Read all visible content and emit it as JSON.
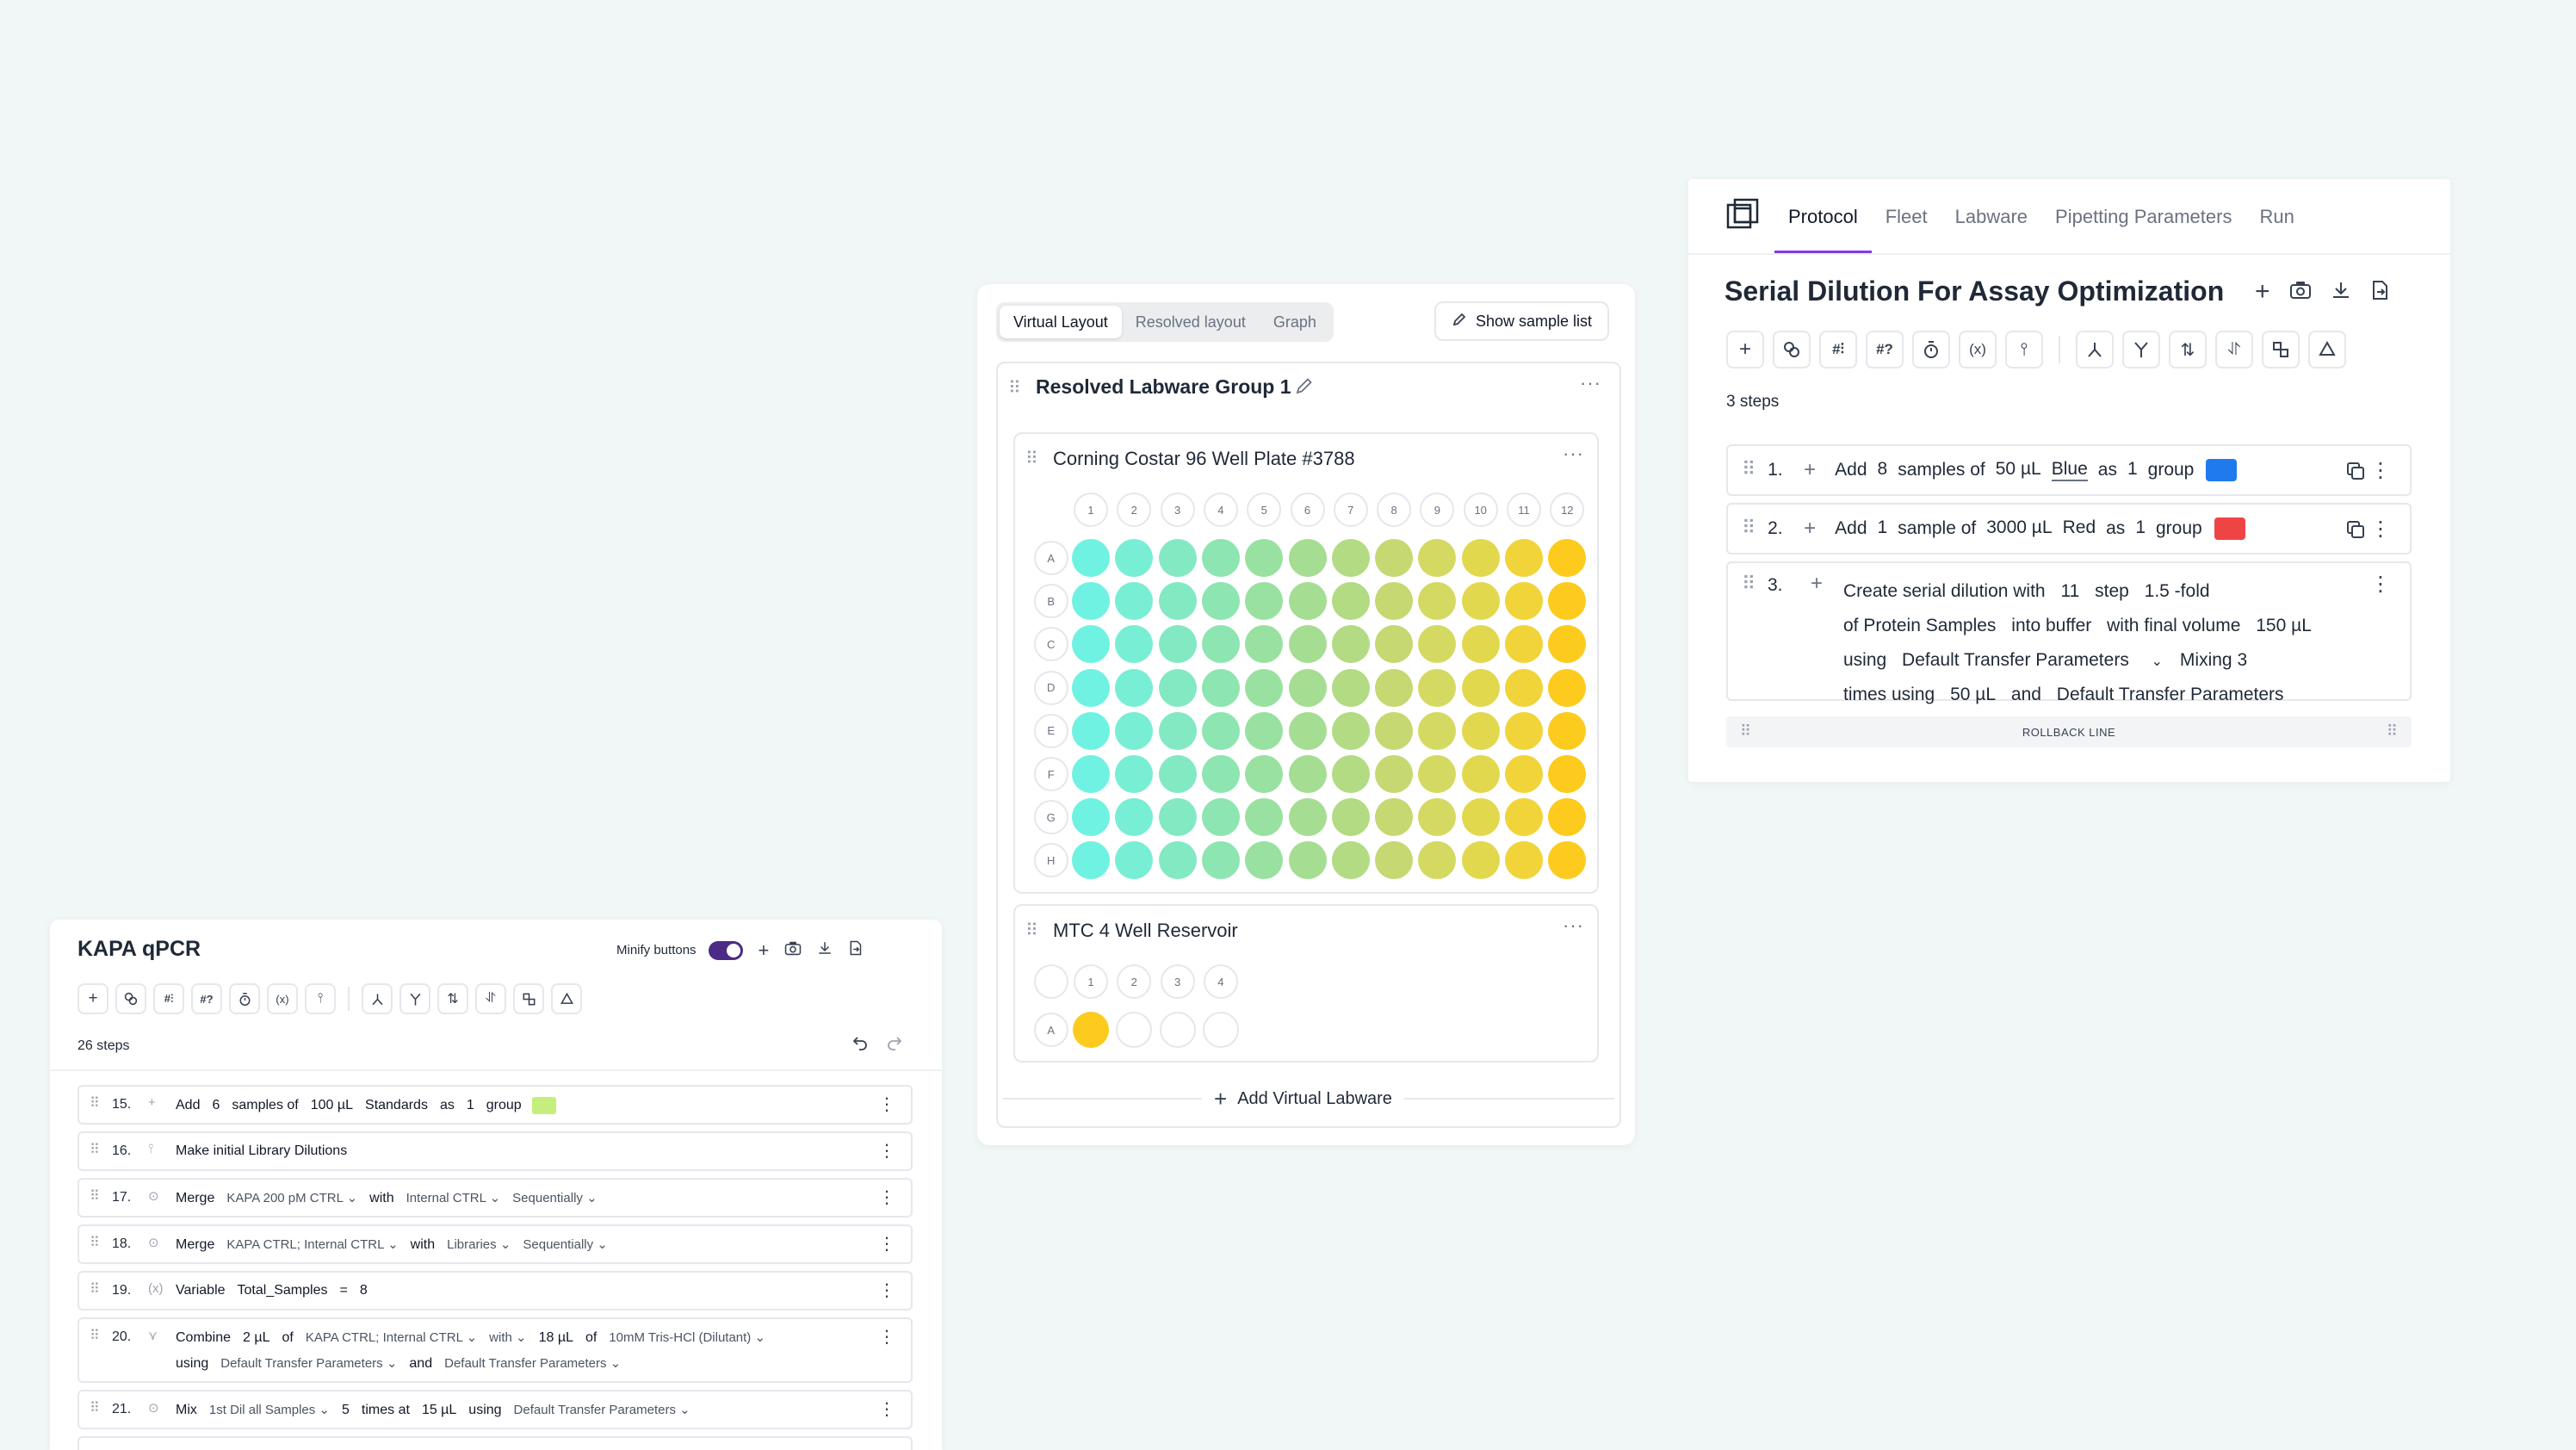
{
  "protocol_panel": {
    "tabs": [
      {
        "label": "Protocol"
      },
      {
        "label": "Fleet"
      },
      {
        "label": "Labware"
      },
      {
        "label": "Pipetting Parameters"
      },
      {
        "label": "Run"
      }
    ],
    "title": "Serial Dilution For Assay Optimization",
    "steps_count": "3 steps",
    "steps": [
      {
        "num": "1.",
        "words": [
          "Add",
          "8",
          "samples of",
          "50 µL",
          "Blue",
          "as",
          "1",
          "group"
        ],
        "color": "#1f7aed"
      },
      {
        "num": "2.",
        "words": [
          "Add",
          "1",
          "sample of",
          "3000 µL",
          "Red",
          "as",
          "1",
          "group"
        ],
        "color": "#ef4444"
      },
      {
        "num": "3.",
        "line1": [
          "Create serial dilution with",
          "11",
          "step",
          "1.5 -fold"
        ],
        "line2": [
          "of Protein Samples",
          "into buffer",
          "with final volume",
          "150 µL"
        ],
        "line3": [
          "using",
          "Default Transfer Parameters",
          "Mixing 3"
        ],
        "line4": [
          "times using",
          "50 µL",
          "and",
          "Default Transfer Parameters"
        ]
      }
    ],
    "rollback": "ROLLBACK LINE"
  },
  "layout_panel": {
    "tabs": [
      {
        "label": "Virtual Layout"
      },
      {
        "label": "Resolved layout"
      },
      {
        "label": "Graph"
      }
    ],
    "show_sample_list": "Show sample list",
    "group_title": "Resolved Labware Group 1",
    "plate": {
      "title": "Corning Costar 96 Well Plate #3788",
      "cols": [
        "1",
        "2",
        "3",
        "4",
        "5",
        "6",
        "7",
        "8",
        "9",
        "10",
        "11",
        "12"
      ],
      "rows": [
        "A",
        "B",
        "C",
        "D",
        "E",
        "F",
        "G",
        "H"
      ],
      "col_colors": [
        "#6ff2e2",
        "#78eed4",
        "#82e9c3",
        "#8de5b1",
        "#99e1a1",
        "#a5dd92",
        "#b2db83",
        "#c5d872",
        "#d4d962",
        "#e2d84e",
        "#f0d439",
        "#fccb1d"
      ]
    },
    "reservoir": {
      "title": "MTC 4 Well Reservoir",
      "cols": [
        "1",
        "2",
        "3",
        "4"
      ],
      "rows": [
        "A"
      ],
      "fill_color": "#fccb1d"
    },
    "add_virtual": "Add Virtual Labware"
  },
  "kapa_panel": {
    "title": "KAPA qPCR",
    "minify_label": "Minify buttons",
    "minify_on": true,
    "steps_count": "26 steps",
    "steps": [
      {
        "num": "15.",
        "lines": [
          [
            [
              "Add",
              0
            ],
            [
              "6",
              0
            ],
            [
              "samples of",
              0
            ],
            [
              "100 µL",
              0
            ],
            [
              "Standards",
              0
            ],
            [
              "as",
              0
            ],
            [
              "1",
              0
            ],
            [
              "group",
              0
            ]
          ]
        ],
        "swatch": "#c4ef7e"
      },
      {
        "num": "16.",
        "lines": [
          [
            [
              "Make initial Library Dilutions",
              0
            ]
          ]
        ]
      },
      {
        "num": "17.",
        "lines": [
          [
            [
              "Merge",
              0
            ],
            [
              "KAPA 200 pM CTRL ⌄",
              1
            ],
            [
              "with",
              0
            ],
            [
              "Internal CTRL ⌄",
              1
            ],
            [
              "Sequentially ⌄",
              1
            ]
          ]
        ]
      },
      {
        "num": "18.",
        "lines": [
          [
            [
              "Merge",
              0
            ],
            [
              "KAPA CTRL; Internal CTRL ⌄",
              1
            ],
            [
              "with",
              0
            ],
            [
              "Libraries ⌄",
              1
            ],
            [
              "Sequentially ⌄",
              1
            ]
          ]
        ]
      },
      {
        "num": "19.",
        "lines": [
          [
            [
              "Variable",
              0
            ],
            [
              "Total_Samples",
              0
            ],
            [
              "=",
              0
            ],
            [
              "8",
              0
            ]
          ]
        ]
      },
      {
        "num": "20.",
        "lines": [
          [
            [
              "Combine",
              0
            ],
            [
              "2 µL",
              0
            ],
            [
              "of",
              0
            ],
            [
              "KAPA CTRL; Internal CTRL ⌄",
              1
            ],
            [
              "with ⌄",
              1
            ],
            [
              "18 µL",
              0
            ],
            [
              "of",
              0
            ],
            [
              "10mM Tris-HCl (Dilutant) ⌄",
              1
            ]
          ],
          [
            [
              "using",
              0
            ],
            [
              "Default Transfer Parameters ⌄",
              1
            ],
            [
              "and",
              0
            ],
            [
              "Default Transfer Parameters ⌄",
              1
            ]
          ]
        ]
      },
      {
        "num": "21.",
        "lines": [
          [
            [
              "Mix",
              0
            ],
            [
              "1st Dil all Samples ⌄",
              1
            ],
            [
              "5",
              0
            ],
            [
              "times at",
              0
            ],
            [
              "15 µL",
              0
            ],
            [
              "using",
              0
            ],
            [
              "Default Transfer Parameters ⌄",
              1
            ]
          ]
        ]
      }
    ]
  }
}
